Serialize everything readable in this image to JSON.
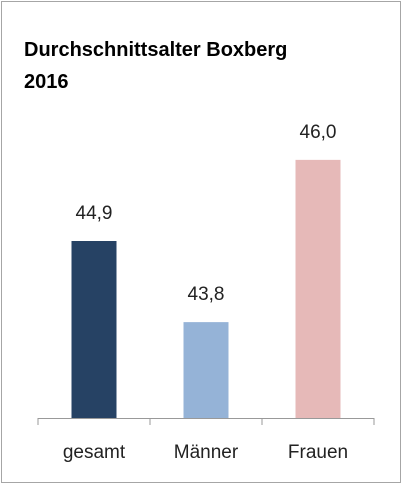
{
  "chart_data": {
    "type": "bar",
    "title": "Durchschnittsalter Boxberg 2016",
    "categories": [
      "gesamt",
      "Männer",
      "Frauen"
    ],
    "values": [
      44.9,
      43.8,
      46.0
    ],
    "value_labels": [
      "44,9",
      "43,8",
      "46,0"
    ],
    "colors": [
      "#264264",
      "#95b3d7",
      "#e6b9b8"
    ],
    "ylim": [
      42.5,
      46.5
    ]
  }
}
